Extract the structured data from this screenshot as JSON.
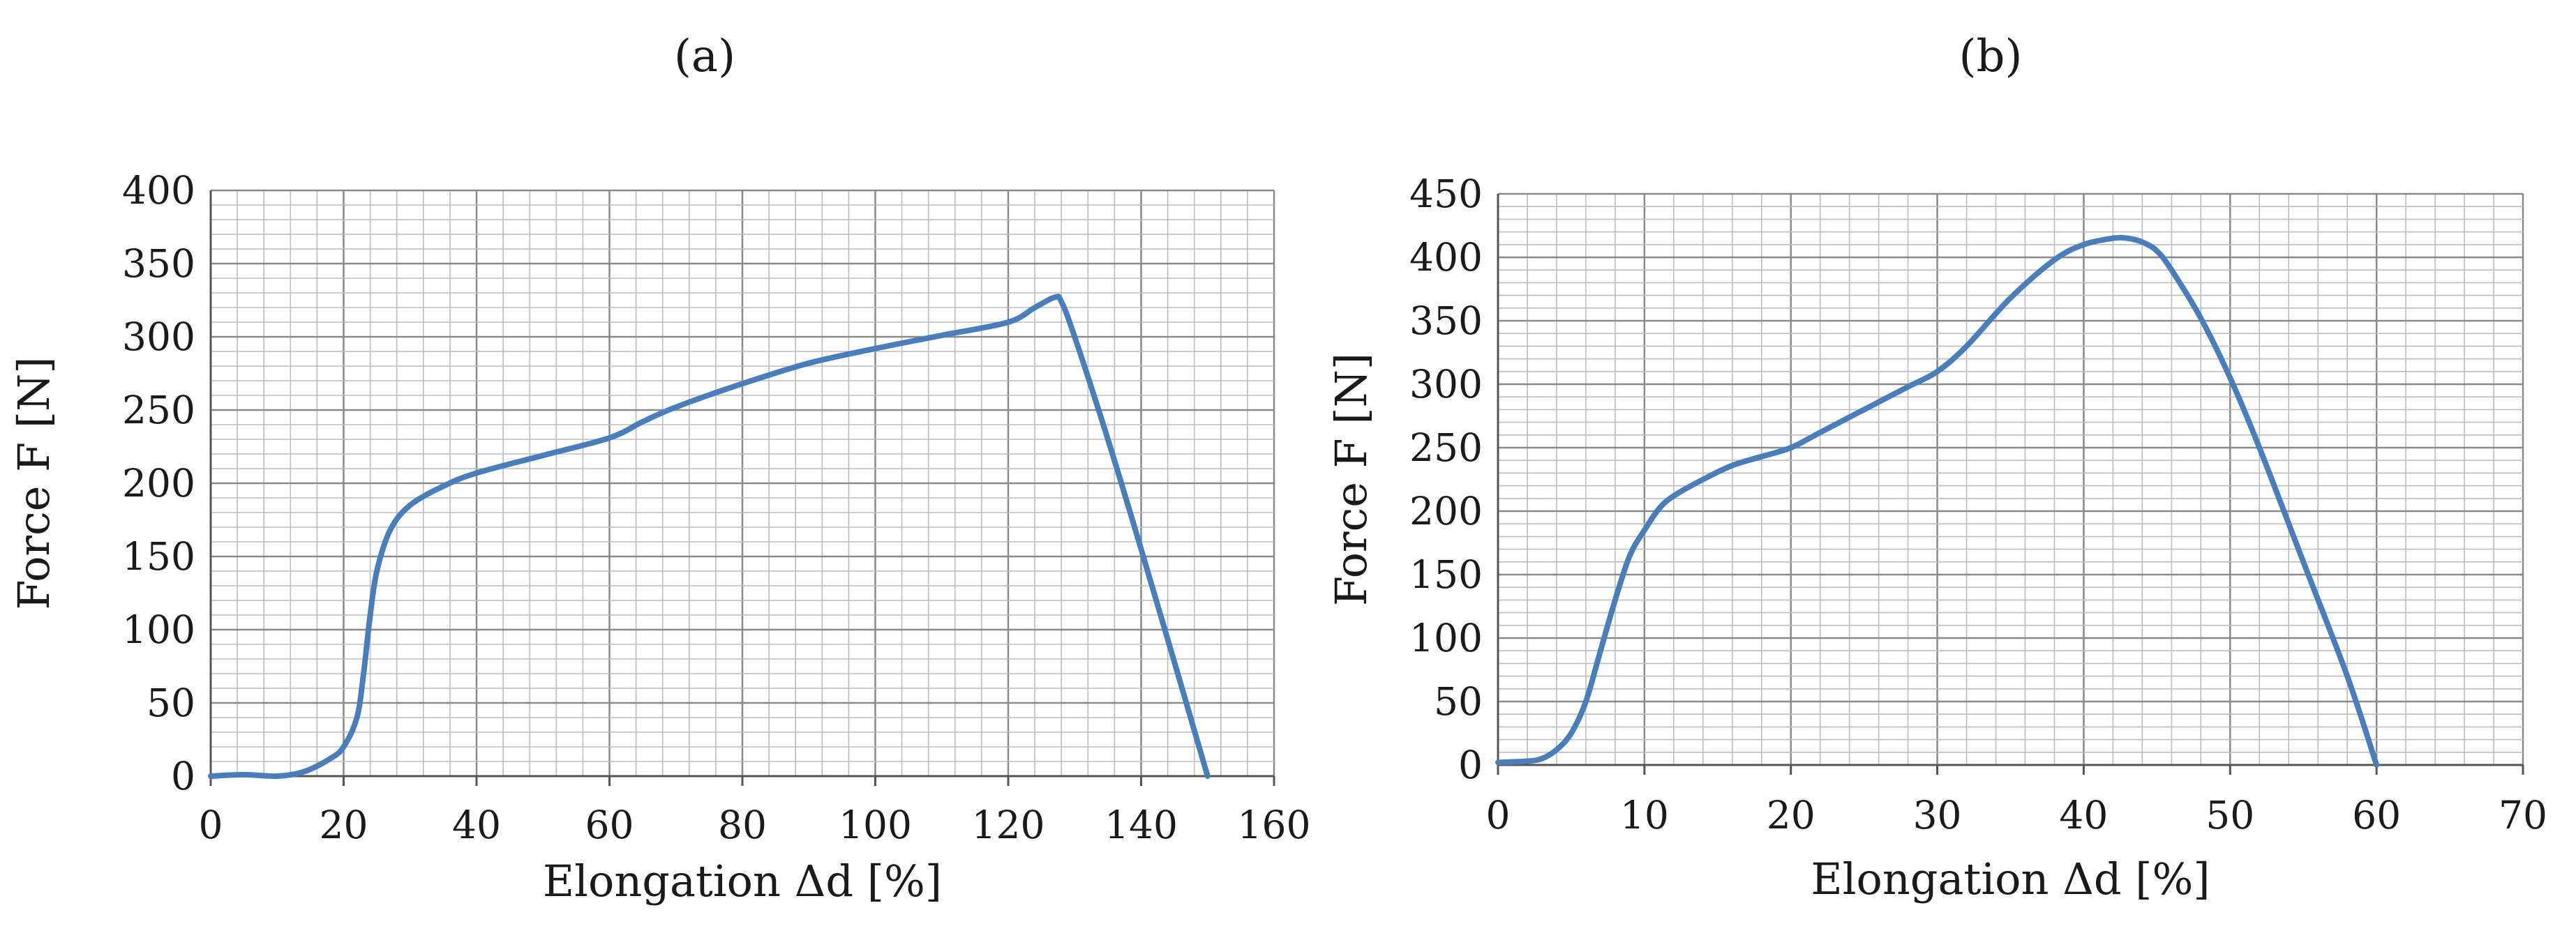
{
  "chart_data": [
    {
      "type": "line",
      "panel_label": "(a)",
      "xlabel": "Elongation Δd [%]",
      "ylabel": "Force F [N]",
      "xlim": [
        0,
        160
      ],
      "ylim": [
        0,
        400
      ],
      "x_ticks": [
        0,
        20,
        40,
        60,
        80,
        100,
        120,
        140,
        160
      ],
      "y_ticks": [
        0,
        50,
        100,
        150,
        200,
        250,
        300,
        350,
        400
      ],
      "grid": true,
      "line_color": "#4a7ebb",
      "series": [
        {
          "x": [
            0,
            5,
            10,
            14,
            18,
            20,
            22,
            23,
            24,
            25,
            27,
            30,
            35,
            40,
            50,
            60,
            65,
            70,
            80,
            90,
            100,
            110,
            120,
            124,
            127,
            128,
            130,
            135,
            140,
            145,
            150
          ],
          "y": [
            0,
            1,
            0,
            3,
            12,
            20,
            40,
            70,
            110,
            140,
            168,
            185,
            198,
            207,
            219,
            231,
            242,
            252,
            268,
            282,
            292,
            301,
            310,
            320,
            327,
            324,
            300,
            230,
            155,
            78,
            0
          ]
        }
      ]
    },
    {
      "type": "line",
      "panel_label": "(b)",
      "xlabel": "Elongation Δd [%]",
      "ylabel": "Force F [N]",
      "xlim": [
        0,
        70
      ],
      "ylim": [
        0,
        450
      ],
      "x_ticks": [
        0,
        10,
        20,
        30,
        40,
        50,
        60,
        70
      ],
      "y_ticks": [
        0,
        50,
        100,
        150,
        200,
        250,
        300,
        350,
        400,
        450
      ],
      "grid": true,
      "line_color": "#4a7ebb",
      "series": [
        {
          "x": [
            0,
            2,
            3,
            4,
            5,
            6,
            7,
            8,
            9,
            10,
            11,
            12,
            14,
            16,
            18,
            20,
            22,
            25,
            28,
            30,
            32,
            35,
            38,
            40,
            42,
            43,
            44,
            45,
            46,
            48,
            50,
            52,
            55,
            58,
            60
          ],
          "y": [
            2,
            3,
            5,
            12,
            25,
            50,
            90,
            130,
            165,
            185,
            202,
            212,
            225,
            236,
            243,
            250,
            262,
            280,
            298,
            310,
            330,
            368,
            398,
            410,
            415,
            415,
            412,
            405,
            390,
            352,
            305,
            250,
            160,
            70,
            0
          ]
        }
      ]
    }
  ]
}
